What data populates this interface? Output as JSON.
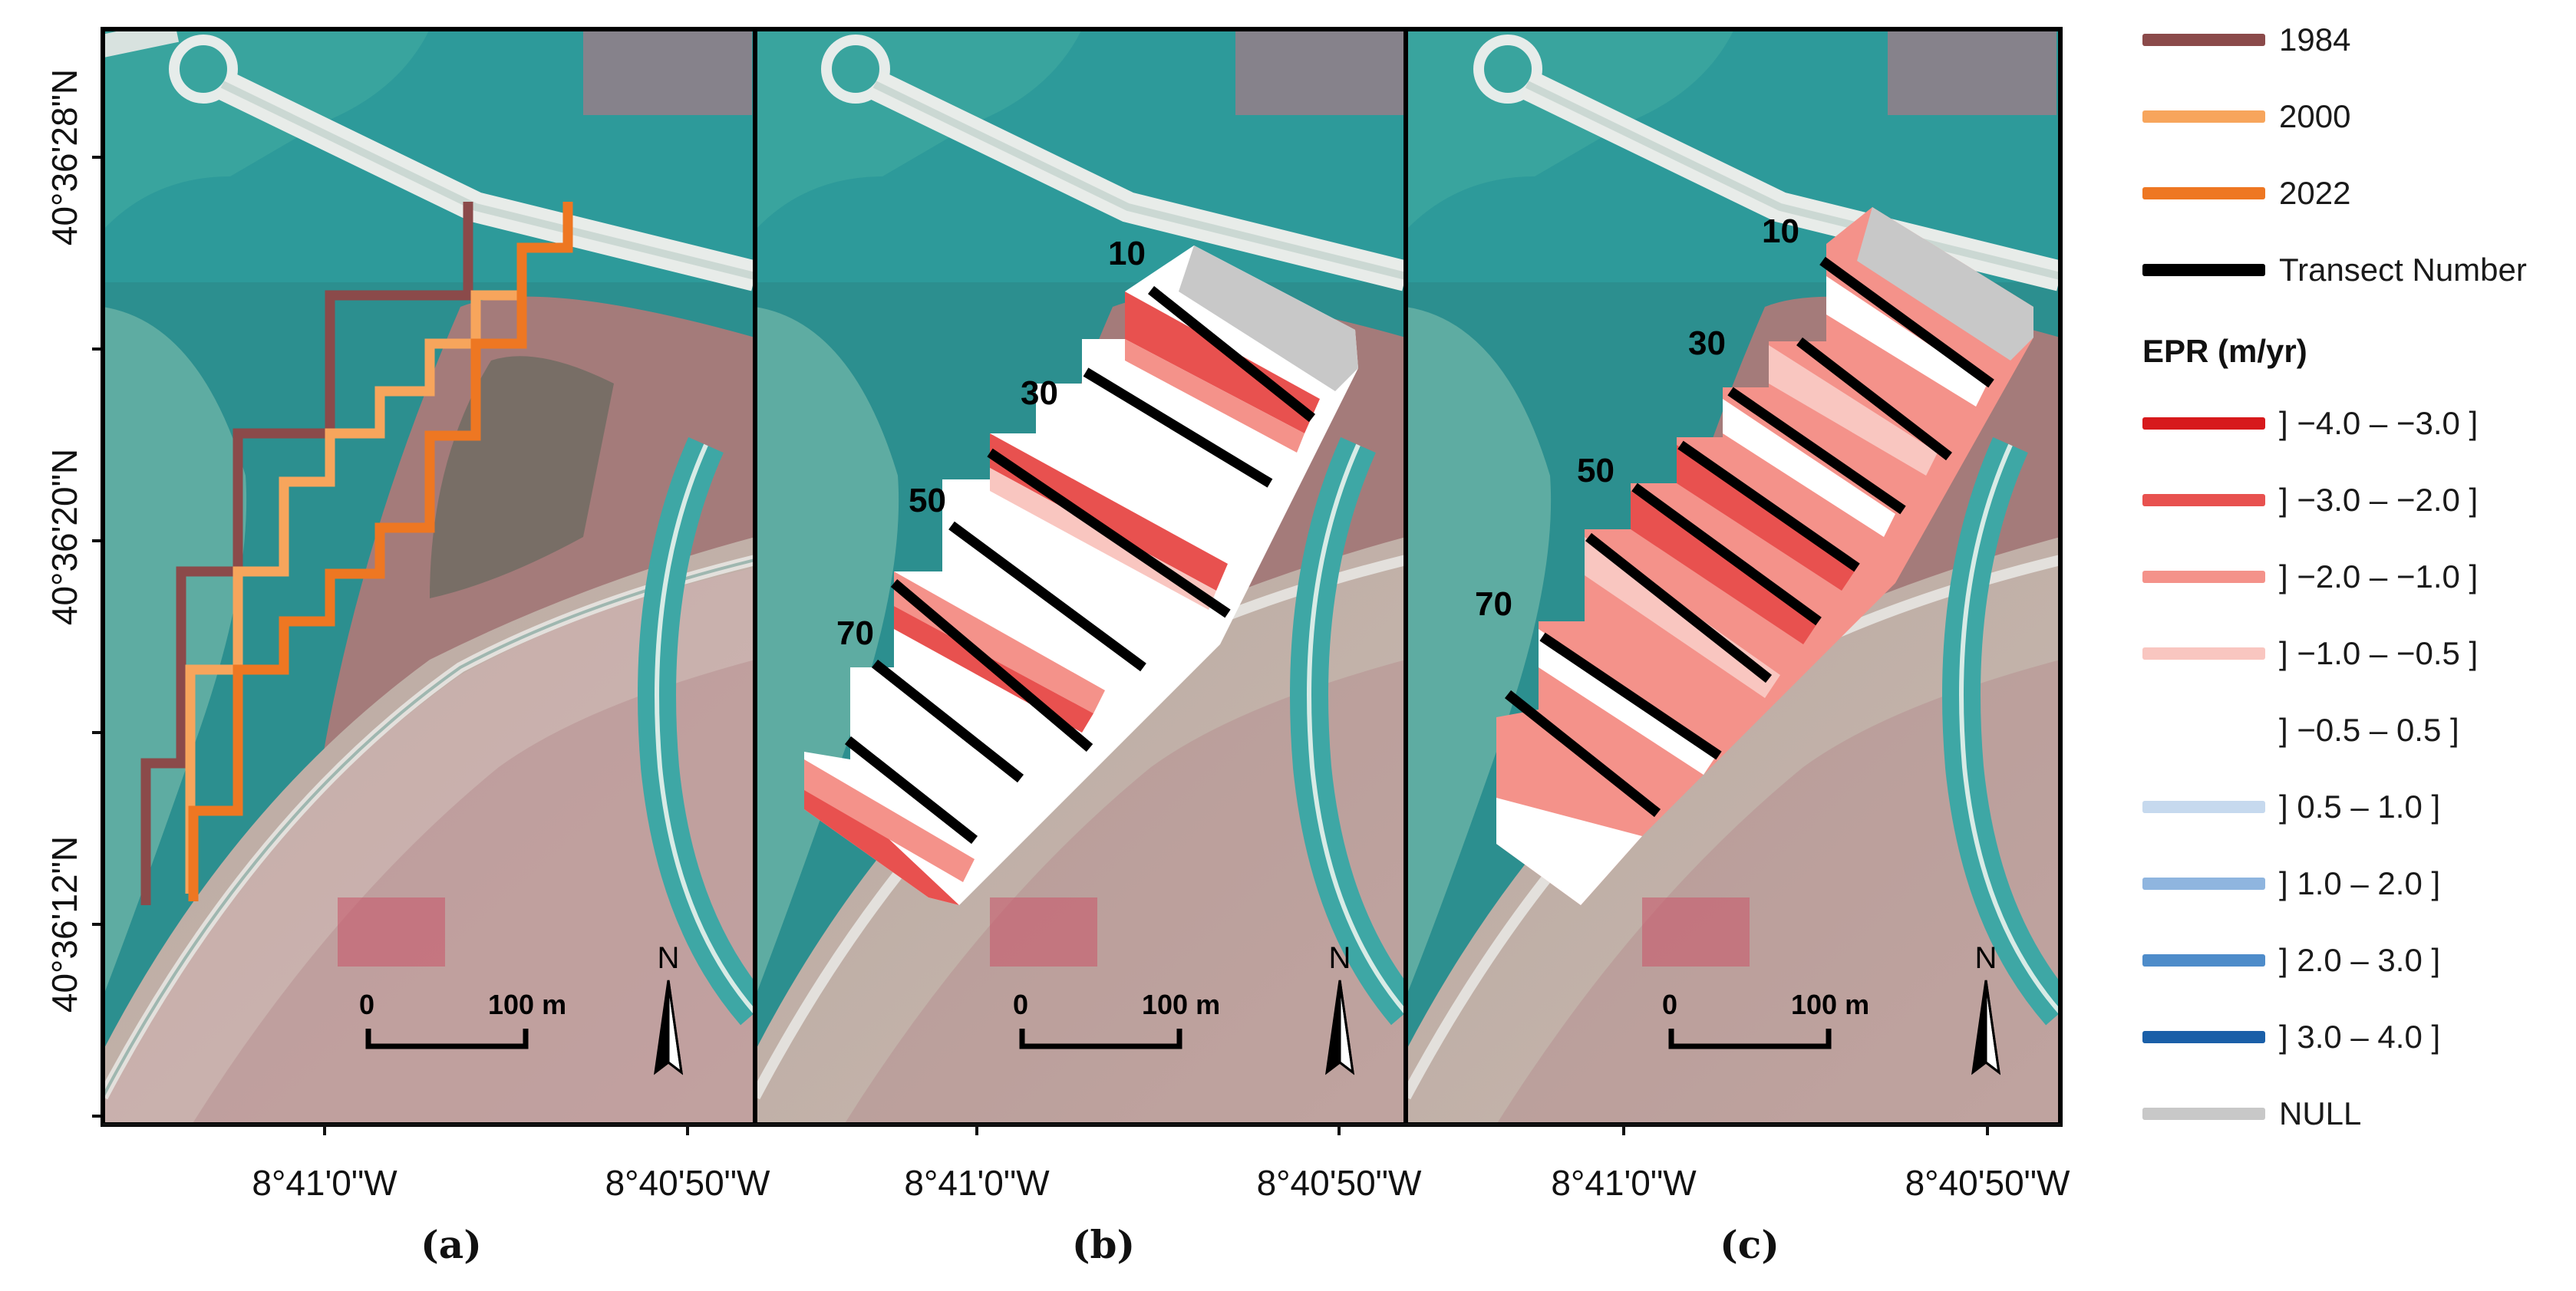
{
  "lat_labels": [
    "40°36'28\"N",
    "40°36'20\"N",
    "40°36'12\"N"
  ],
  "lon_labels": [
    "8°41'0\"W",
    "8°40'50\"W"
  ],
  "panels": [
    {
      "letter": "(a)",
      "numbers": []
    },
    {
      "letter": "(b)",
      "numbers": [
        "10",
        "30",
        "50",
        "70"
      ]
    },
    {
      "letter": "(c)",
      "numbers": [
        "10",
        "30",
        "50",
        "70"
      ]
    }
  ],
  "scale_bar": {
    "start": "0",
    "end": "100 m"
  },
  "north_label": "N",
  "legend": {
    "shorelines": [
      {
        "label": "1984",
        "color": "#8b4a4a"
      },
      {
        "label": "2000",
        "color": "#f7a55c"
      },
      {
        "label": "2022",
        "color": "#ee7722"
      },
      {
        "label": "Transect Number",
        "color": "#000000"
      }
    ],
    "epr_title": "EPR (m/yr)",
    "epr_classes": [
      {
        "label": "] −4.0 – −3.0 ]",
        "color": "#d7191c"
      },
      {
        "label": "] −3.0 – −2.0 ]",
        "color": "#e8514f"
      },
      {
        "label": "] −2.0 – −1.0 ]",
        "color": "#f4928a"
      },
      {
        "label": "] −1.0 – −0.5 ]",
        "color": "#f9c6c0"
      },
      {
        "label": "] −0.5 – 0.5 ]",
        "color": "#ffffff"
      },
      {
        "label": "] 0.5 – 1.0 ]",
        "color": "#c6d9ee"
      },
      {
        "label": "] 1.0 – 2.0 ]",
        "color": "#8fb5df"
      },
      {
        "label": "] 2.0 – 3.0 ]",
        "color": "#4e8cca"
      },
      {
        "label": "] 3.0 – 4.0 ]",
        "color": "#1a5fa8"
      },
      {
        "label": "NULL",
        "color": "#c8c8c8"
      }
    ]
  }
}
